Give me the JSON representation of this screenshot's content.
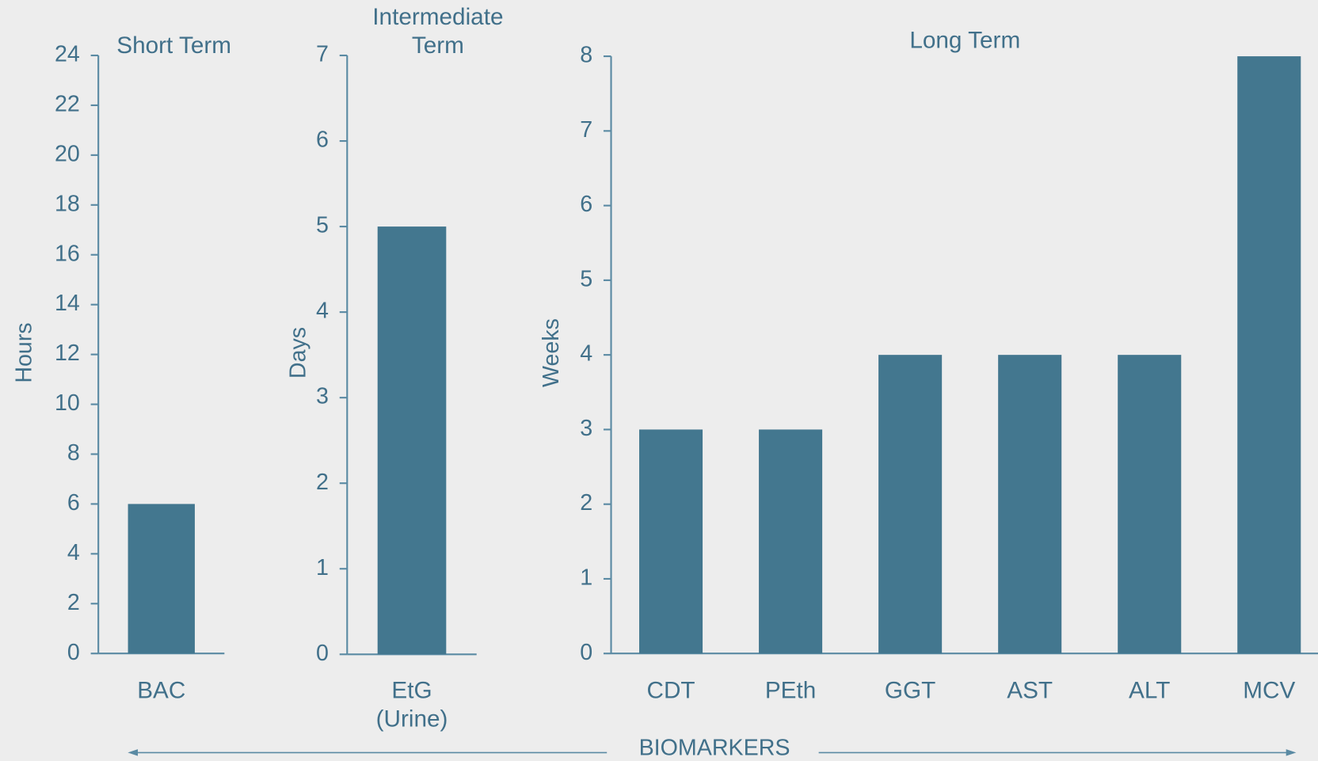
{
  "chart_data": [
    {
      "type": "bar",
      "title": "Short Term",
      "ylabel": "Hours",
      "categories": [
        "BAC"
      ],
      "values": [
        6
      ],
      "color": "#43778f",
      "ylim": [
        0,
        24
      ],
      "yticks": [
        0,
        2,
        4,
        6,
        8,
        10,
        12,
        14,
        16,
        18,
        20,
        22,
        24
      ]
    },
    {
      "type": "bar",
      "title": "Intermediate\nTerm",
      "ylabel": "Days",
      "categories": [
        "EtG\n(Urine)"
      ],
      "values": [
        5
      ],
      "color": "#43778f",
      "ylim": [
        0,
        7
      ],
      "yticks": [
        0,
        1,
        2,
        3,
        4,
        5,
        6,
        7
      ]
    },
    {
      "type": "bar",
      "title": "Long Term",
      "ylabel": "Weeks",
      "categories": [
        "CDT",
        "PEth",
        "GGT",
        "AST",
        "ALT",
        "MCV"
      ],
      "values": [
        3,
        3,
        4,
        4,
        4,
        8
      ],
      "color": "#43778f",
      "ylim": [
        0,
        8
      ],
      "yticks": [
        0,
        1,
        2,
        3,
        4,
        5,
        6,
        7,
        8
      ]
    }
  ],
  "footer": "BIOMARKERS"
}
